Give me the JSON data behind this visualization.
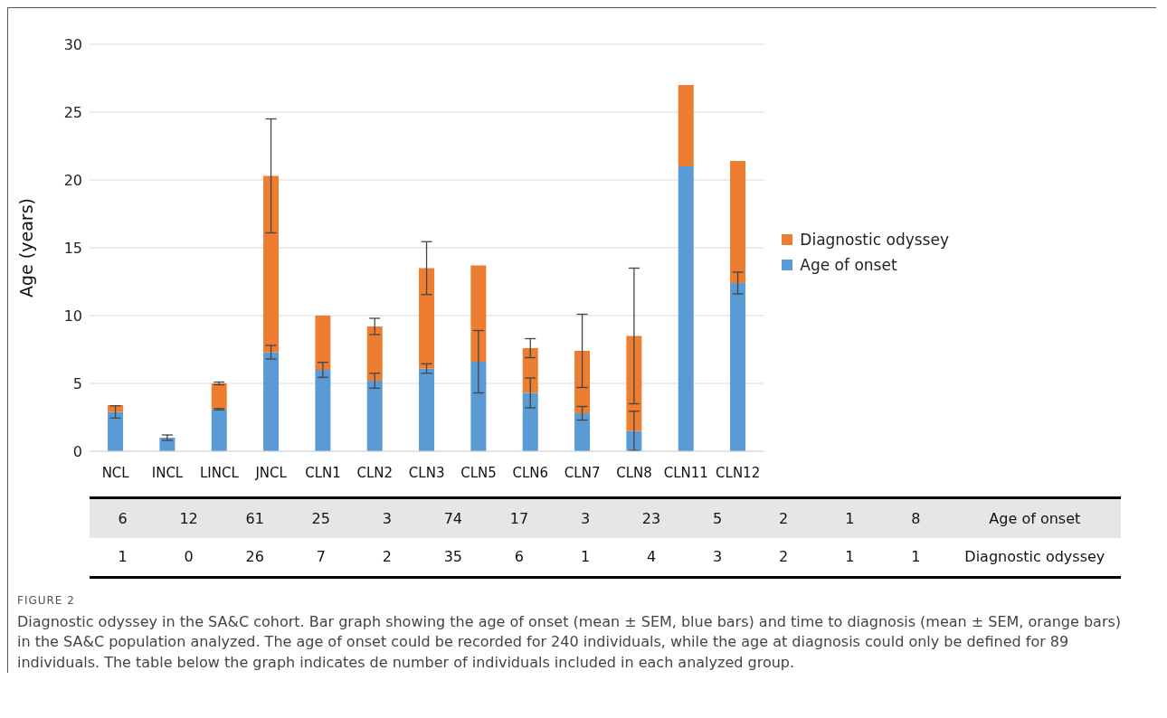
{
  "chart_data": {
    "type": "bar",
    "stacked": true,
    "ylabel": "Age (years)",
    "categories": [
      "NCL",
      "INCL",
      "LINCL",
      "JNCL",
      "CLN1",
      "CLN2",
      "CLN3",
      "CLN5",
      "CLN6",
      "CLN7",
      "CLN8",
      "CLN11",
      "CLN12"
    ],
    "series": [
      {
        "name": "Age of onset",
        "color": "#5b9bd5",
        "values": [
          2.9,
          1.0,
          3.1,
          7.3,
          6.0,
          5.2,
          6.1,
          6.6,
          4.3,
          2.8,
          1.5,
          21.0,
          12.4
        ],
        "errors": [
          0.45,
          0.2,
          0.05,
          0.5,
          0.55,
          0.55,
          0.35,
          2.3,
          1.1,
          0.5,
          1.45,
          0,
          0.8
        ]
      },
      {
        "name": "Diagnostic odyssey",
        "color": "#ed7d31",
        "values": [
          0.5,
          null,
          1.9,
          13.0,
          4.0,
          4.0,
          7.4,
          7.1,
          3.3,
          4.6,
          7.0,
          6.0,
          9.0
        ],
        "errors": [
          0,
          null,
          0.1,
          4.2,
          0,
          0.6,
          1.95,
          0,
          0.7,
          2.7,
          5.0,
          0,
          0
        ]
      }
    ],
    "ylim": [
      0,
      30
    ],
    "yticks": [
      0,
      5,
      10,
      15,
      20,
      25,
      30
    ],
    "grid": "y",
    "legend": "right",
    "annotations": [
      "6",
      "12",
      "61",
      "25",
      "3",
      "74",
      "17",
      "3",
      "23",
      "5",
      "2",
      "1",
      "8",
      "Age of onset",
      "1",
      "0",
      "26",
      "7",
      "2",
      "35",
      "6",
      "1",
      "4",
      "3",
      "2",
      "1",
      "1",
      "Diagnostic odyssey",
      "FIGURE 2",
      "Diagnostic odyssey in the SA&C cohort. Bar graph showing the age of onset (mean ± SEM, blue bars) and time to diagnosis (mean ± SEM, orange bars) in the SA&C population analyzed. The age of onset could be recorded for 240 individuals, while the age at diagnosis could only be defined for 89 individuals. The table below the graph indicates de number of individuals included in each analyzed group."
    ]
  }
}
